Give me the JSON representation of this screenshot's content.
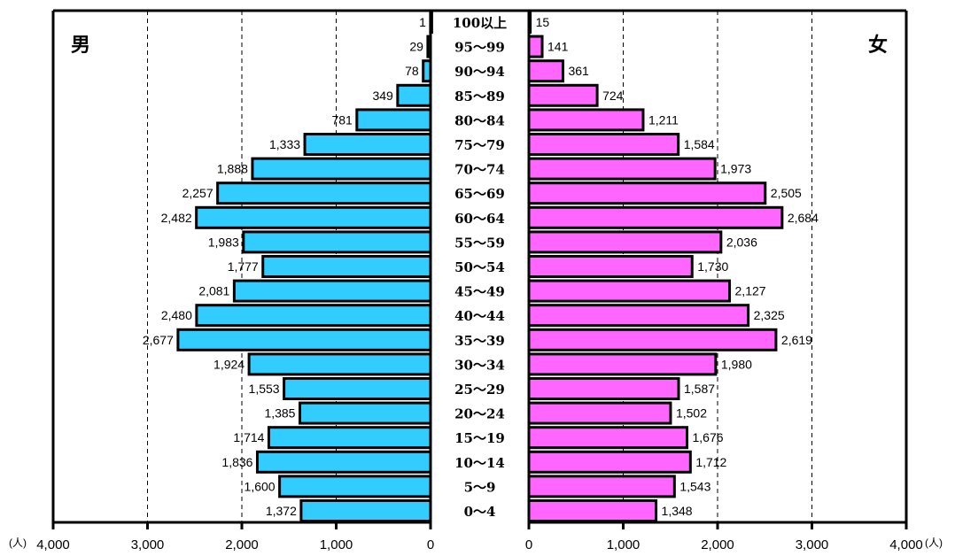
{
  "chart_data": {
    "type": "bar",
    "orientation": "horizontal-pyramid",
    "left_label": "男",
    "right_label": "女",
    "unit_label": "(人)",
    "categories": [
      "0～4",
      "5～9",
      "10～14",
      "15～19",
      "20～24",
      "25～29",
      "30～34",
      "35～39",
      "40～44",
      "45～49",
      "50～54",
      "55～59",
      "60～64",
      "65～69",
      "70～74",
      "75～79",
      "80～84",
      "85～89",
      "90～94",
      "95～99",
      "100以上"
    ],
    "series": [
      {
        "name": "男",
        "color": "#33CCFF",
        "values": [
          1372,
          1600,
          1836,
          1714,
          1385,
          1553,
          1924,
          2677,
          2480,
          2081,
          1777,
          1983,
          2482,
          2257,
          1888,
          1333,
          781,
          349,
          78,
          29,
          1
        ]
      },
      {
        "name": "女",
        "color": "#FF66FF",
        "values": [
          1348,
          1543,
          1712,
          1676,
          1502,
          1587,
          1980,
          2619,
          2325,
          2127,
          1730,
          2036,
          2684,
          2505,
          1973,
          1584,
          1211,
          724,
          361,
          141,
          15
        ]
      }
    ],
    "value_labels_male": [
      "1,372",
      "1,600",
      "1,836",
      "1,714",
      "1,385",
      "1,553",
      "1,924",
      "2,677",
      "2,480",
      "2,081",
      "1,777",
      "1,983",
      "2,482",
      "2,257",
      "1,888",
      "1,333",
      "781",
      "349",
      "78",
      "29",
      "1"
    ],
    "value_labels_female": [
      "1,348",
      "1,543",
      "1,712",
      "1,676",
      "1,502",
      "1,587",
      "1,980",
      "2,619",
      "2,325",
      "2,127",
      "1,730",
      "2,036",
      "2,684",
      "2,505",
      "1,973",
      "1,584",
      "1,211",
      "724",
      "361",
      "141",
      "15"
    ],
    "ticks": [
      0,
      1000,
      2000,
      3000,
      4000
    ],
    "tick_labels": [
      "0",
      "1,000",
      "2,000",
      "3,000",
      "4,000"
    ],
    "xlim": [
      0,
      4000
    ],
    "grid": "dashed vertical"
  }
}
